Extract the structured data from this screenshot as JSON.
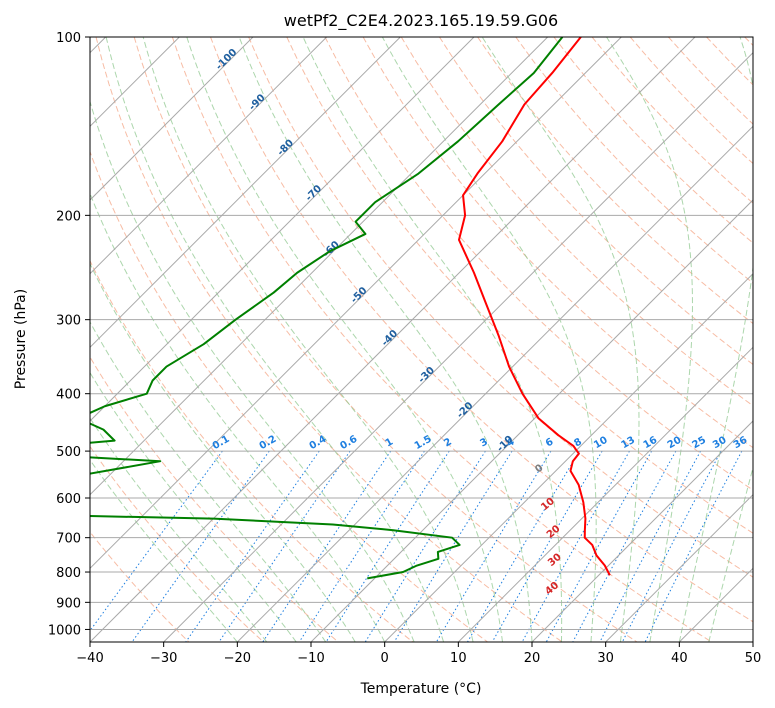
{
  "chart_data": {
    "type": "line",
    "subtype": "skew-t log-p",
    "title": "wetPf2_C2E4.2023.165.19.59.G06",
    "xlabel": "Temperature (°C)",
    "ylabel": "Pressure (hPa)",
    "xlim": [
      -40,
      50
    ],
    "ylim": [
      1050,
      100
    ],
    "y_scale": "log",
    "grid": true,
    "x_ticks": [
      -40,
      -30,
      -20,
      -10,
      0,
      10,
      20,
      30,
      40,
      50
    ],
    "x_tick_labels": [
      "−40",
      "−30",
      "−20",
      "−10",
      "0",
      "10",
      "20",
      "30",
      "40",
      "50"
    ],
    "y_ticks": [
      100,
      200,
      300,
      400,
      500,
      600,
      700,
      800,
      900,
      1000
    ],
    "y_tick_labels": [
      "100",
      "200",
      "300",
      "400",
      "500",
      "600",
      "700",
      "800",
      "900",
      "1000"
    ],
    "series": [
      {
        "role": "temperature",
        "color": "#ff0000",
        "pressure": [
          100,
          115,
          130,
          150,
          170,
          185,
          200,
          220,
          250,
          280,
          320,
          360,
          400,
          440,
          470,
          490,
          505,
          520,
          540,
          570,
          610,
          650,
          680,
          700,
          720,
          750,
          780,
          810
        ],
        "temperature": [
          -55.5,
          -54.5,
          -54,
          -52,
          -51,
          -50,
          -47,
          -44.5,
          -38,
          -32.5,
          -26,
          -20.5,
          -15,
          -9.5,
          -4.5,
          -1,
          0.8,
          1,
          2,
          5,
          8,
          10.5,
          12,
          13,
          15,
          17,
          19.5,
          21.5
        ]
      },
      {
        "role": "dewpoint",
        "color": "#008000",
        "pressure": [
          100,
          115,
          130,
          150,
          170,
          190,
          205,
          215,
          230,
          250,
          270,
          300,
          330,
          360,
          380,
          400,
          420,
          440,
          460,
          480,
          495,
          500,
          505,
          520,
          560,
          590,
          610,
          625,
          635,
          650,
          665,
          680,
          700,
          720,
          740,
          760,
          780,
          800,
          820
        ],
        "dewpoint": [
          -58,
          -57,
          -57.5,
          -58,
          -59,
          -61,
          -61,
          -58,
          -60.5,
          -62,
          -62.5,
          -64,
          -65,
          -67,
          -67,
          -66,
          -70,
          -72,
          -67,
          -64,
          -75,
          -85,
          -75,
          -55,
          -67,
          -67,
          -68,
          -80,
          -80,
          -40,
          -23,
          -14,
          -5,
          -3,
          -5,
          -4,
          -6,
          -7,
          -11
        ]
      }
    ],
    "mixing_ratio_labels": [
      "0.1",
      "0.2",
      "0.4",
      "0.6",
      "1",
      "1.5",
      "2",
      "3",
      "4",
      "6",
      "8",
      "10",
      "13",
      "16",
      "20",
      "25",
      "30",
      "36"
    ],
    "dry_adiabat_labels": [
      "-100",
      "-90",
      "-80",
      "-70",
      "-60",
      "-50",
      "-40",
      "-30",
      "-20",
      "-10"
    ],
    "moist_adiabat_labels": [
      "0",
      "10",
      "20",
      "30",
      "40"
    ],
    "colors": {
      "isotherm": "#a9a9a9",
      "isobar": "#a9a9a9",
      "dry_adiabat": "#f4a07e",
      "moist_adiabat": "#90c890",
      "mixing_ratio": "#1e7fe0",
      "theta_label": "#1f5f9f",
      "moist_label": "#d62728",
      "zero_label": "#7f7f7f"
    }
  }
}
